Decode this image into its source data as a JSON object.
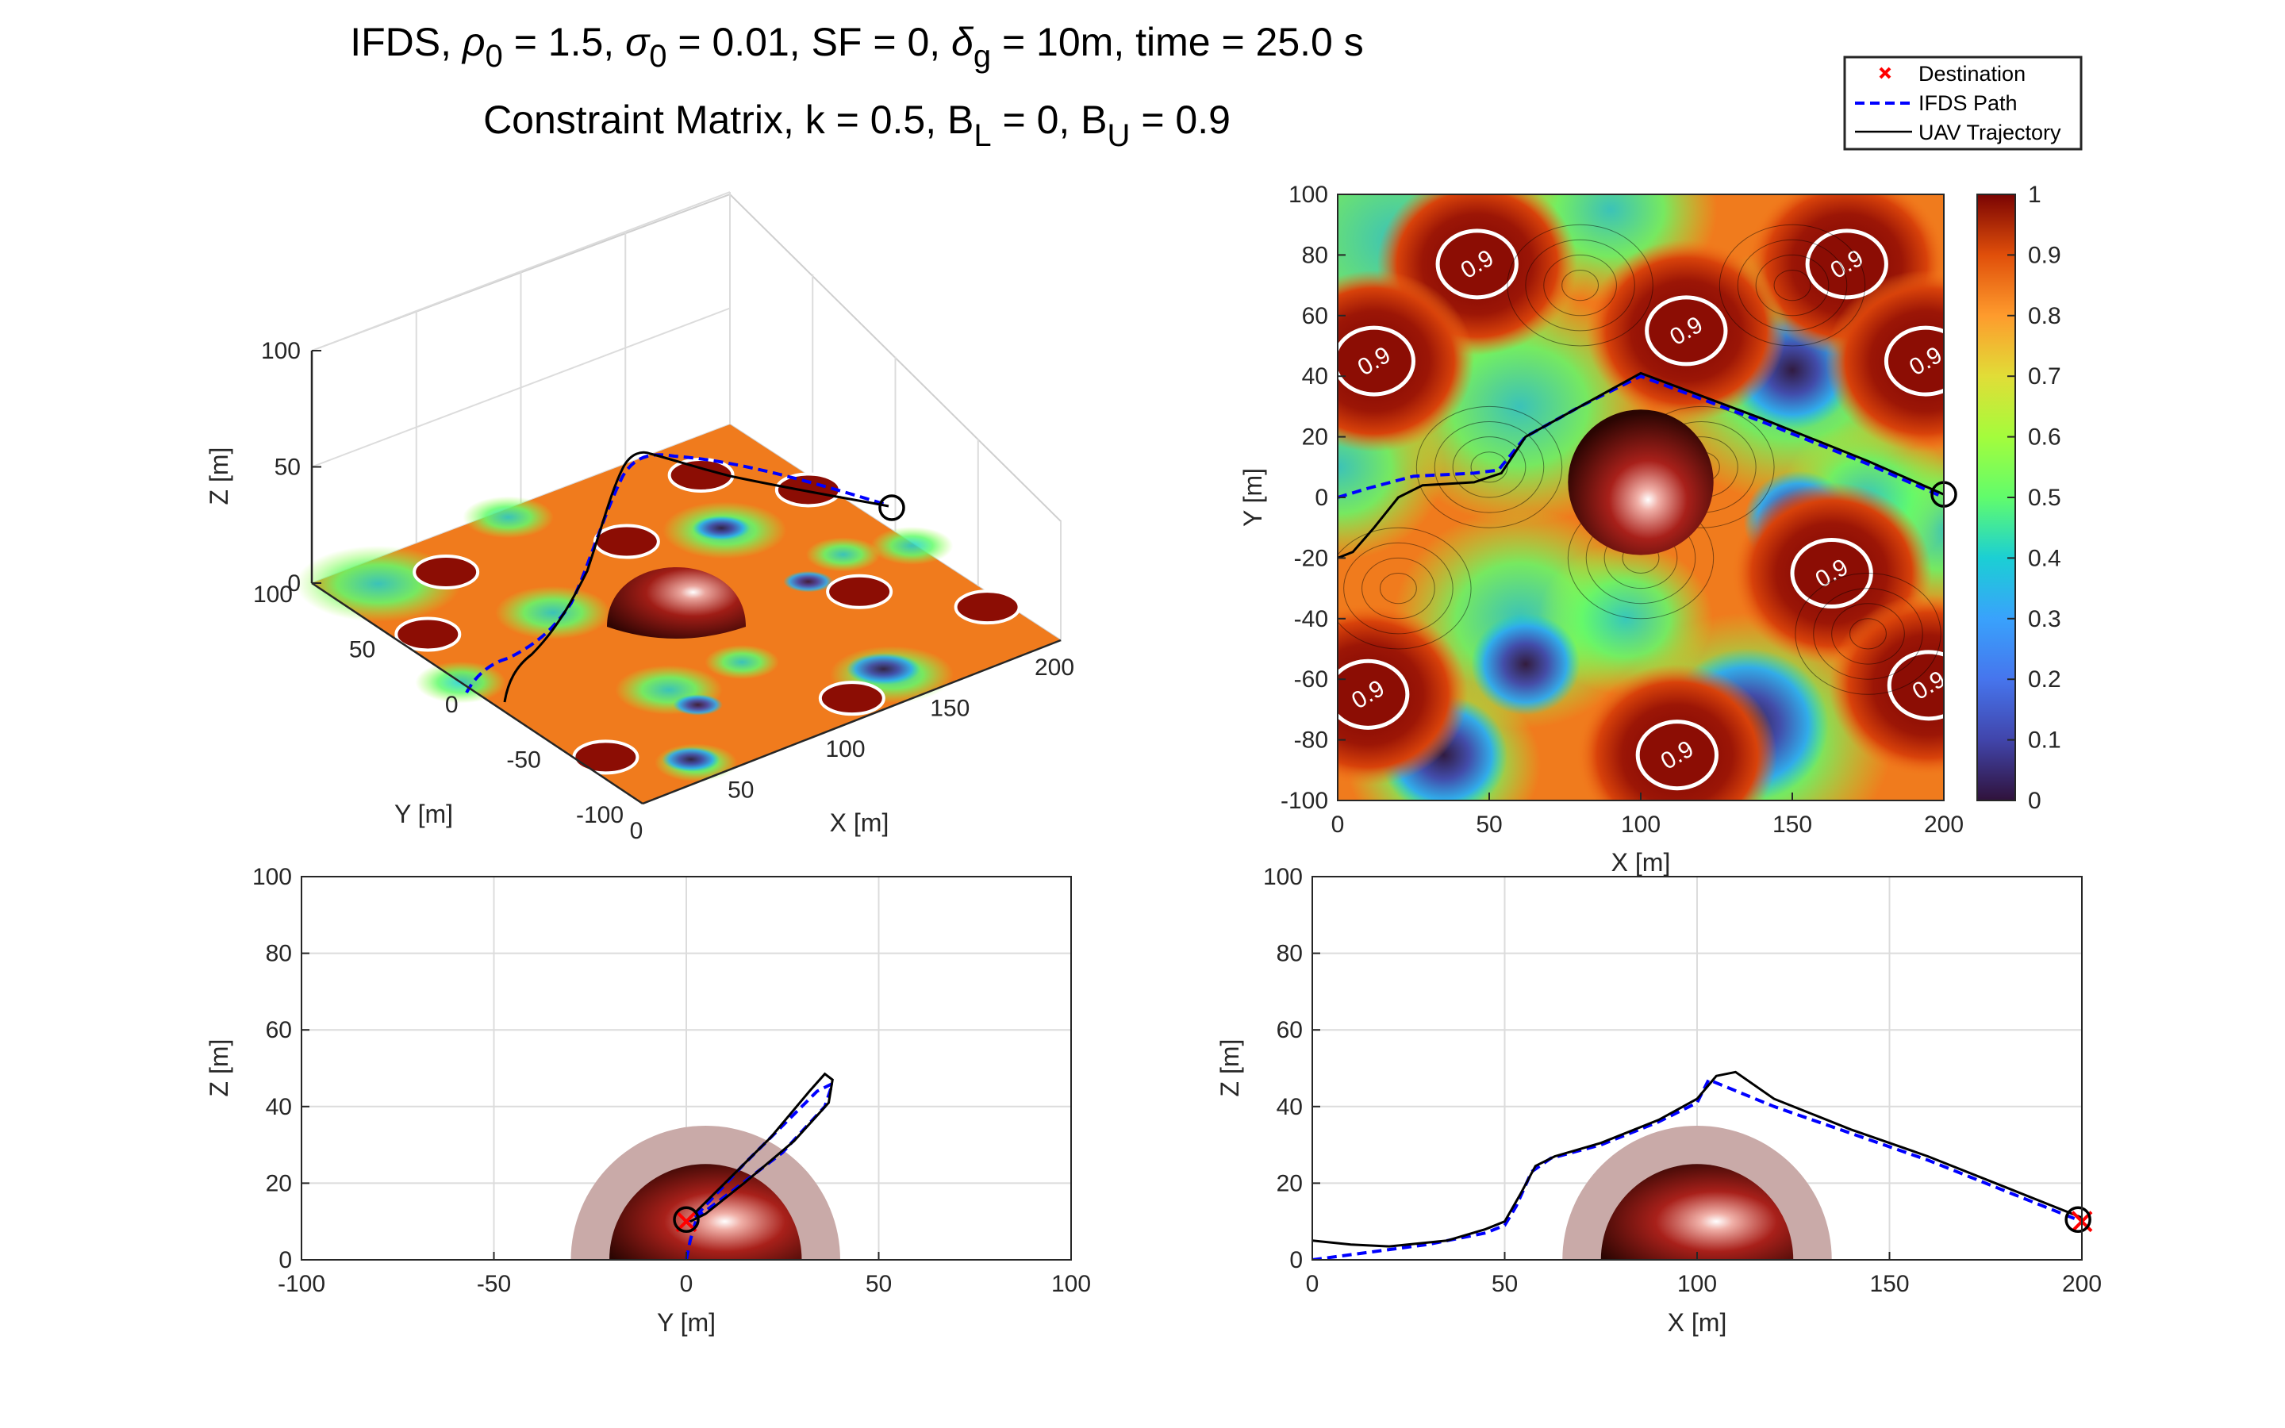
{
  "title": {
    "line1": {
      "prefix": "IFDS, ",
      "rho": "ρ",
      "rho_sub": "0",
      "rho_val": " = 1.5, ",
      "sigma": "σ",
      "sigma_sub": "0",
      "sigma_val": " = 0.01, SF = 0, ",
      "delta": "δ",
      "delta_sub": "g",
      "rest": " = 10m, time = 25.0 s"
    },
    "line2": {
      "prefix": "Constraint Matrix, k = 0.5, B",
      "bl_sub": "L",
      "bl_val": " = 0, B",
      "bu_sub": "U",
      "bu_val": " = 0.9"
    }
  },
  "legend": {
    "entries": [
      {
        "label": "Destination",
        "style": "marker-x",
        "color": "#ff0000"
      },
      {
        "label": "IFDS Path",
        "style": "dashed",
        "color": "#0000ff"
      },
      {
        "label": "UAV Trajectory",
        "style": "solid",
        "color": "#000000"
      }
    ]
  },
  "colors": {
    "path": "#0000ff",
    "trajectory": "#000000",
    "destination": "#ff0000",
    "obstacle": "#8b1a10",
    "buffer": "#c9aaa8",
    "grid": "#dcdcdc"
  },
  "chart_data": [
    {
      "id": "view3d",
      "type": "surface3d",
      "xlabel": "X [m]",
      "ylabel": "Y [m]",
      "zlabel": "Z [m]",
      "xticks": [
        "0",
        "50",
        "100",
        "150",
        "200"
      ],
      "yticks": [
        "-100",
        "-50",
        "0",
        "50",
        "100"
      ],
      "zticks": [
        "0",
        "50",
        "100"
      ],
      "xlim": [
        0,
        200
      ],
      "ylim": [
        -100,
        100
      ],
      "zlim": [
        0,
        100
      ]
    },
    {
      "id": "topview",
      "type": "heatmap",
      "xlabel": "X [m]",
      "ylabel": "Y [m]",
      "xlim": [
        0,
        200
      ],
      "ylim": [
        -100,
        100
      ],
      "xticks": [
        "0",
        "50",
        "100",
        "150",
        "200"
      ],
      "yticks": [
        "-100",
        "-80",
        "-60",
        "-40",
        "-20",
        "0",
        "20",
        "40",
        "60",
        "80",
        "100"
      ],
      "colorbar": {
        "min": 0,
        "max": 1,
        "ticks": [
          "0",
          "0.1",
          "0.2",
          "0.3",
          "0.4",
          "0.5",
          "0.6",
          "0.7",
          "0.8",
          "0.9",
          "1"
        ]
      },
      "contour_level": "0.9",
      "high_regions": [
        {
          "x": 46,
          "y": 77
        },
        {
          "x": 168,
          "y": 77
        },
        {
          "x": 115,
          "y": 55
        },
        {
          "x": 12,
          "y": 45
        },
        {
          "x": 194,
          "y": 45
        },
        {
          "x": 163,
          "y": -25
        },
        {
          "x": 10,
          "y": -65
        },
        {
          "x": 195,
          "y": -62
        },
        {
          "x": 112,
          "y": -85
        }
      ],
      "obstacle": {
        "x": 100,
        "y": 5,
        "r": 24
      },
      "ifds_path": [
        [
          0,
          0
        ],
        [
          10,
          3
        ],
        [
          25,
          7
        ],
        [
          45,
          8
        ],
        [
          53,
          9
        ],
        [
          62,
          20
        ],
        [
          80,
          30
        ],
        [
          100,
          40
        ],
        [
          140,
          25
        ],
        [
          175,
          11
        ],
        [
          200,
          0
        ]
      ],
      "uav_trajectory": [
        [
          0,
          -20
        ],
        [
          5,
          -18
        ],
        [
          12,
          -10
        ],
        [
          20,
          0
        ],
        [
          28,
          4
        ],
        [
          45,
          5
        ],
        [
          54,
          8
        ],
        [
          62,
          20
        ],
        [
          80,
          30
        ],
        [
          100,
          41
        ],
        [
          140,
          26
        ],
        [
          175,
          12
        ],
        [
          200,
          1
        ]
      ],
      "uav_position": [
        200,
        1
      ]
    },
    {
      "id": "yz",
      "type": "line",
      "xlabel": "Y [m]",
      "ylabel": "Z [m]",
      "xlim": [
        -100,
        100
      ],
      "ylim": [
        0,
        100
      ],
      "xticks": [
        "-100",
        "-50",
        "0",
        "50",
        "100"
      ],
      "yticks": [
        "0",
        "20",
        "40",
        "60",
        "80",
        "100"
      ],
      "obstacle": {
        "center": [
          5,
          0
        ],
        "r": 25,
        "buffer_r": 35
      },
      "ifds_path": [
        [
          0,
          0
        ],
        [
          1,
          5
        ],
        [
          3,
          12
        ],
        [
          15,
          25
        ],
        [
          25,
          35
        ],
        [
          34,
          44
        ],
        [
          38,
          46
        ],
        [
          36,
          40
        ],
        [
          25,
          28
        ],
        [
          12,
          18
        ],
        [
          4,
          12
        ],
        [
          0,
          10
        ]
      ],
      "uav_trajectory": [
        [
          0,
          10
        ],
        [
          3,
          13
        ],
        [
          10,
          20
        ],
        [
          22,
          32
        ],
        [
          32,
          44
        ],
        [
          36,
          48.5
        ],
        [
          38,
          47
        ],
        [
          37,
          41
        ],
        [
          28,
          31
        ],
        [
          15,
          20
        ],
        [
          5,
          12
        ],
        [
          1,
          10
        ]
      ],
      "destination": [
        0,
        10
      ],
      "uav_position": [
        0,
        10.5
      ]
    },
    {
      "id": "xz",
      "type": "line",
      "xlabel": "X [m]",
      "ylabel": "Z [m]",
      "xlim": [
        0,
        200
      ],
      "ylim": [
        0,
        100
      ],
      "xticks": [
        "0",
        "50",
        "100",
        "150",
        "200"
      ],
      "yticks": [
        "0",
        "20",
        "40",
        "60",
        "80",
        "100"
      ],
      "obstacle": {
        "center": [
          100,
          0
        ],
        "r": 25,
        "buffer_r": 35
      },
      "ifds_path": [
        [
          0,
          0
        ],
        [
          15,
          2
        ],
        [
          30,
          4
        ],
        [
          45,
          7
        ],
        [
          50,
          9
        ],
        [
          53,
          14
        ],
        [
          57,
          23
        ],
        [
          62,
          26.5
        ],
        [
          75,
          30
        ],
        [
          90,
          36
        ],
        [
          100,
          41
        ],
        [
          103,
          47
        ],
        [
          120,
          40
        ],
        [
          140,
          33
        ],
        [
          160,
          26
        ],
        [
          180,
          18
        ],
        [
          200,
          10
        ]
      ],
      "uav_trajectory": [
        [
          0,
          5
        ],
        [
          10,
          4
        ],
        [
          20,
          3.5
        ],
        [
          35,
          5
        ],
        [
          45,
          8
        ],
        [
          50,
          10
        ],
        [
          54,
          17
        ],
        [
          58,
          24.5
        ],
        [
          63,
          27
        ],
        [
          75,
          30.5
        ],
        [
          90,
          36.5
        ],
        [
          100,
          42
        ],
        [
          105,
          48
        ],
        [
          110,
          49
        ],
        [
          120,
          42
        ],
        [
          140,
          34
        ],
        [
          160,
          27
        ],
        [
          180,
          19
        ],
        [
          200,
          11
        ]
      ],
      "destination": [
        200,
        10
      ],
      "uav_position": [
        199,
        10.5
      ]
    }
  ]
}
